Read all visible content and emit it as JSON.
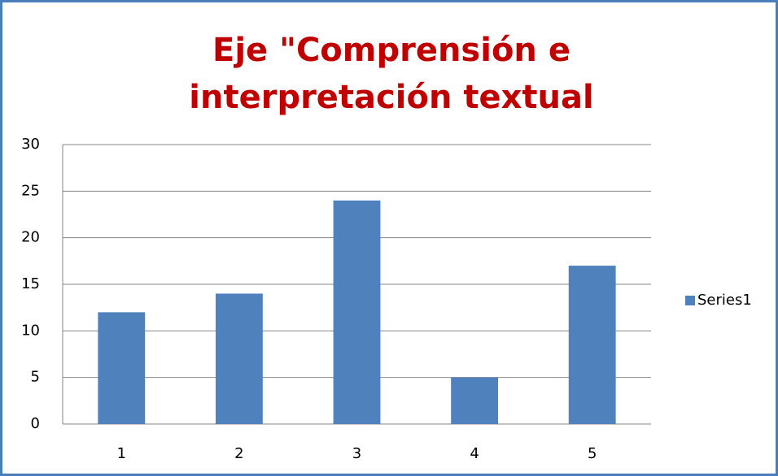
{
  "chart_data": {
    "type": "bar",
    "title": "Eje \"Comprensión e interpretación textual",
    "categories": [
      "1",
      "2",
      "3",
      "4",
      "5"
    ],
    "series": [
      {
        "name": "Series1",
        "color": "#4f81bd",
        "values": [
          12,
          14,
          24,
          5,
          17
        ]
      }
    ],
    "ylim": [
      0,
      30
    ],
    "yticks": [
      0,
      5,
      10,
      15,
      20,
      25,
      30
    ],
    "grid": true,
    "legend": "right"
  }
}
